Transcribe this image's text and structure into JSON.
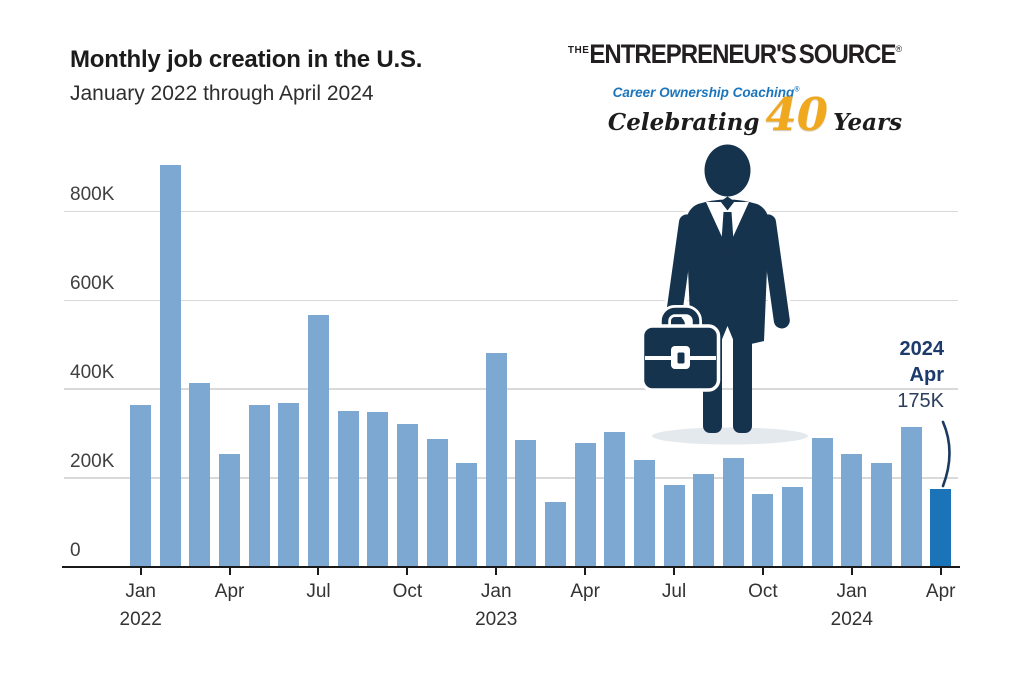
{
  "header": {
    "title": "Monthly job creation in the U.S.",
    "subtitle": "January 2022 through April 2024"
  },
  "logo": {
    "the": "THE",
    "brand_left": "ENTREPRENEUR'S",
    "brand_e": "e",
    "brand_right": "SOURCE",
    "registered": "®",
    "tagline": "Career Ownership Coaching",
    "tagline_registered": "®",
    "celebrating": "Celebrating",
    "years_number": "40",
    "years_word": "Years",
    "colors": {
      "gold": "#f0a81f",
      "tagline_blue": "#1b75bc",
      "text_black": "#231f20"
    }
  },
  "chart_data": {
    "type": "bar",
    "title": "Monthly job creation in the U.S.",
    "subtitle": "January 2022 through April 2024",
    "unit": "thousands of jobs",
    "x": [
      "Jan 2022",
      "Feb 2022",
      "Mar 2022",
      "Apr 2022",
      "May 2022",
      "Jun 2022",
      "Jul 2022",
      "Aug 2022",
      "Sep 2022",
      "Oct 2022",
      "Nov 2022",
      "Dec 2022",
      "Jan 2023",
      "Feb 2023",
      "Mar 2023",
      "Apr 2023",
      "May 2023",
      "Jun 2023",
      "Jul 2023",
      "Aug 2023",
      "Sep 2023",
      "Oct 2023",
      "Nov 2023",
      "Dec 2023",
      "Jan 2024",
      "Feb 2024",
      "Mar 2024",
      "Apr 2024"
    ],
    "values": [
      364,
      904,
      414,
      254,
      364,
      370,
      568,
      350,
      348,
      322,
      288,
      235,
      482,
      286,
      146,
      278,
      304,
      240,
      184,
      210,
      246,
      165,
      180,
      290,
      254,
      234,
      315,
      175
    ],
    "highlight_index": 27,
    "ylim": [
      0,
      950
    ],
    "grid": true,
    "legend": false,
    "bar_color": "#7ca8d2",
    "highlight_color": "#1b74b8",
    "yticks": [
      {
        "value": 0,
        "label": "0"
      },
      {
        "value": 200,
        "label": "200K"
      },
      {
        "value": 400,
        "label": "400K"
      },
      {
        "value": 600,
        "label": "600K"
      },
      {
        "value": 800,
        "label": "800K"
      }
    ],
    "xticks": [
      {
        "month": 0,
        "label": "Jan",
        "year": "2022"
      },
      {
        "month": 3,
        "label": "Apr"
      },
      {
        "month": 6,
        "label": "Jul"
      },
      {
        "month": 9,
        "label": "Oct"
      },
      {
        "month": 12,
        "label": "Jan",
        "year": "2023"
      },
      {
        "month": 15,
        "label": "Apr"
      },
      {
        "month": 18,
        "label": "Jul"
      },
      {
        "month": 21,
        "label": "Oct"
      },
      {
        "month": 24,
        "label": "Jan",
        "year": "2024"
      },
      {
        "month": 27,
        "label": "Apr"
      }
    ],
    "annotation": {
      "line1": "2024",
      "line2": "Apr",
      "line3": "175K"
    }
  },
  "figure": {
    "name": "businessman-with-briefcase",
    "color": "#16334e"
  }
}
